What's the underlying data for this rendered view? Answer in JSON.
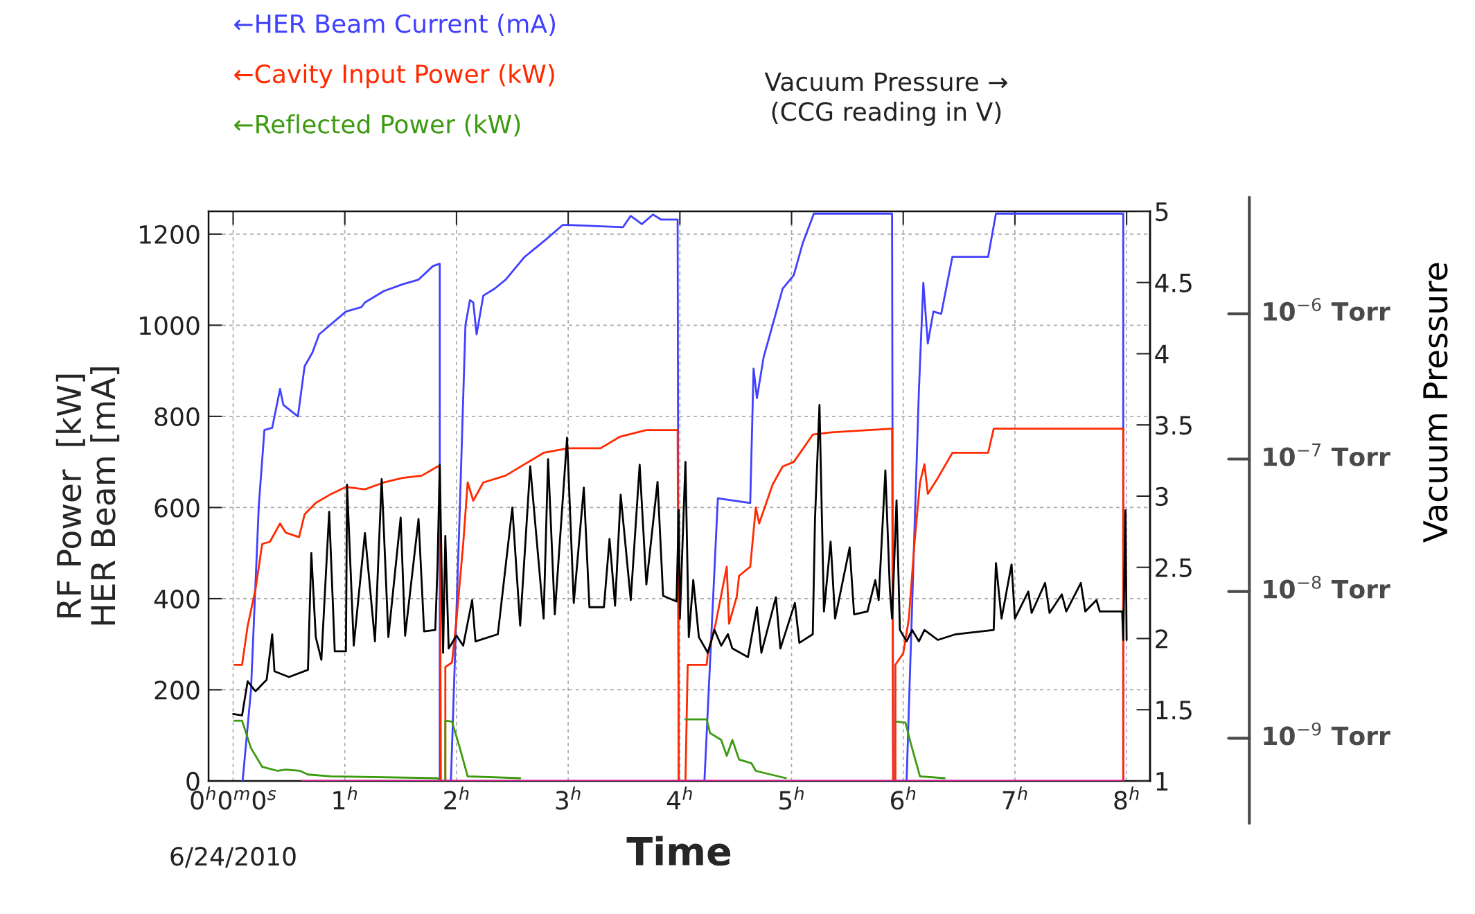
{
  "chart_data": {
    "type": "line",
    "xlabel": "Time",
    "ylabel": "RF Power  [kW]\nHER Beam [mA]",
    "y2label": "Vacuum Pressure →\n(CCG reading in V)",
    "annotations": [
      "6/24/2010",
      "Vacuum Pressure"
    ],
    "xlim": [
      -0.22,
      8.21
    ],
    "xticks": [
      {
        "value": 0,
        "label": "0$^{h}$0$^{m}$0$^{s}$"
      },
      {
        "value": 1,
        "label": "1$^{h}$"
      },
      {
        "value": 2,
        "label": "2$^{h}$"
      },
      {
        "value": 3,
        "label": "3$^{h}$"
      },
      {
        "value": 4,
        "label": "4$^{h}$"
      },
      {
        "value": 5,
        "label": "5$^{h}$"
      },
      {
        "value": 6,
        "label": "6$^{h}$"
      },
      {
        "value": 7,
        "label": "7$^{h}$"
      },
      {
        "value": 8,
        "label": "8$^{h}$"
      }
    ],
    "ylim": [
      0,
      1250
    ],
    "yticks": [
      0,
      200,
      400,
      600,
      800,
      1000,
      1200
    ],
    "y2lim": [
      1,
      5
    ],
    "y2ticks": [
      1,
      1.5,
      2,
      2.5,
      3,
      3.5,
      4,
      4.5,
      5
    ],
    "ref_lines": [
      {
        "axis": "y2",
        "value": 4.28,
        "label": "10$^{−6}$ Torr",
        "color": "#4a4a4a"
      },
      {
        "axis": "y2",
        "value": 3.26,
        "label": "10$^{−7}$ Torr",
        "color": "#4a4a4a"
      },
      {
        "axis": "y2",
        "value": 2.33,
        "label": "10$^{−8}$ Torr",
        "color": "#4a4a4a"
      },
      {
        "axis": "y2",
        "value": 1.3,
        "label": "10$^{−9}$ Torr",
        "color": "#4a4a4a"
      }
    ],
    "grid": true,
    "line_style": "solid",
    "series": [
      {
        "name": "←HER Beam Current (mA)",
        "color": "#4040ff",
        "x": [
          0.085,
          0.16,
          0.23,
          0.28,
          0.35,
          0.42,
          0.45,
          0.58,
          0.64,
          0.71,
          0.77,
          1.01,
          1.15,
          1.18,
          1.35,
          1.52,
          1.66,
          1.79,
          1.85,
          1.85,
          1.95,
          2.03,
          2.08,
          2.12,
          2.15,
          2.18,
          2.24,
          2.34,
          2.44,
          2.61,
          2.81,
          2.95,
          3.0,
          3.49,
          3.56,
          3.66,
          3.76,
          3.83,
          3.98,
          3.99,
          4.22,
          4.34,
          4.63,
          4.66,
          4.69,
          4.75,
          4.83,
          4.92,
          5.02,
          5.1,
          5.2,
          5.9,
          5.91,
          6.03,
          6.14,
          6.18,
          6.22,
          6.27,
          6.34,
          6.44,
          6.76,
          6.83,
          7.97,
          7.97
        ],
        "values": [
          0,
          200,
          605,
          770,
          775,
          860,
          825,
          800,
          910,
          940,
          980,
          1030,
          1040,
          1050,
          1075,
          1090,
          1100,
          1130,
          1135,
          0,
          0,
          600,
          1000,
          1055,
          1050,
          980,
          1065,
          1080,
          1100,
          1150,
          1190,
          1220,
          1220,
          1215,
          1240,
          1222,
          1243,
          1232,
          1232,
          0,
          0,
          620,
          610,
          905,
          840,
          930,
          1000,
          1080,
          1110,
          1180,
          1245,
          1245,
          0,
          0,
          855,
          1093,
          960,
          1030,
          1025,
          1150,
          1150,
          1245,
          1245,
          0
        ]
      },
      {
        "name": "←Cavity Input Power (kW)",
        "color": "#ff2a00",
        "x": [
          0.01,
          0.08,
          0.13,
          0.2,
          0.26,
          0.33,
          0.42,
          0.47,
          0.59,
          0.64,
          0.74,
          0.88,
          1.01,
          1.18,
          1.35,
          1.52,
          1.69,
          1.83,
          1.85,
          1.86,
          1.9,
          1.9,
          1.96,
          2.0,
          2.06,
          2.1,
          2.15,
          2.24,
          2.44,
          2.61,
          2.78,
          3.0,
          3.29,
          3.46,
          3.7,
          3.98,
          3.99,
          4.05,
          4.07,
          4.24,
          4.25,
          4.32,
          4.42,
          4.44,
          4.51,
          4.53,
          4.63,
          4.68,
          4.71,
          4.83,
          4.92,
          5.02,
          5.19,
          5.36,
          5.69,
          5.9,
          5.91,
          5.93,
          5.93,
          6.0,
          6.05,
          6.1,
          6.15,
          6.19,
          6.22,
          6.31,
          6.44,
          6.76,
          6.81,
          7.97,
          7.97
        ],
        "values": [
          255,
          255,
          340,
          420,
          520,
          525,
          565,
          545,
          535,
          585,
          610,
          630,
          645,
          640,
          655,
          665,
          670,
          690,
          690,
          0,
          0,
          250,
          260,
          355,
          520,
          655,
          615,
          655,
          670,
          695,
          720,
          730,
          730,
          755,
          770,
          770,
          0,
          0,
          255,
          255,
          280,
          345,
          470,
          345,
          405,
          450,
          470,
          600,
          565,
          650,
          690,
          700,
          760,
          765,
          770,
          773,
          0,
          0,
          255,
          280,
          355,
          520,
          655,
          695,
          630,
          665,
          720,
          720,
          773,
          773,
          0
        ]
      },
      {
        "name": "←Reflected Power (kW)",
        "color": "#3c9a10",
        "x": [
          0.01,
          0.08,
          0.16,
          0.26,
          0.4,
          0.47,
          0.6,
          0.67,
          0.88,
          1.83,
          1.86,
          1.9,
          1.9,
          1.96,
          2.03,
          2.1,
          2.57,
          3.3,
          4.05,
          4.24,
          4.27,
          4.37,
          4.42,
          4.47,
          4.53,
          4.64,
          4.68,
          4.95,
          5.5,
          5.94,
          6.02,
          6.07,
          6.15,
          6.37
        ],
        "values": [
          132,
          132,
          72,
          31,
          22,
          25,
          22,
          14,
          10,
          6,
          0,
          0,
          132,
          130,
          72,
          10,
          6,
          null,
          135,
          135,
          105,
          90,
          55,
          90,
          47,
          39,
          22,
          6,
          null,
          130,
          128,
          80,
          10,
          6
        ]
      },
      {
        "color": "#e0179a",
        "x": [
          0.62,
          7.97
        ],
        "values": [
          0,
          0
        ]
      },
      {
        "color": "#000000",
        "axis": "y2",
        "x": [
          0,
          0.08,
          0.13,
          0.2,
          0.3,
          0.35,
          0.37,
          0.5,
          0.67,
          0.7,
          0.74,
          0.79,
          0.86,
          0.91,
          1.01,
          1.02,
          1.08,
          1.18,
          1.27,
          1.33,
          1.39,
          1.5,
          1.54,
          1.66,
          1.71,
          1.81,
          1.83,
          1.85,
          1.88,
          1.9,
          1.93,
          2.0,
          2.06,
          2.14,
          2.17,
          2.37,
          2.5,
          2.57,
          2.66,
          2.78,
          2.82,
          2.88,
          2.99,
          3.05,
          3.14,
          3.19,
          3.32,
          3.37,
          3.42,
          3.47,
          3.56,
          3.64,
          3.7,
          3.8,
          3.85,
          3.97,
          3.99,
          4.0,
          4.05,
          4.08,
          4.12,
          4.17,
          4.25,
          4.31,
          4.37,
          4.43,
          4.47,
          4.61,
          4.69,
          4.73,
          4.86,
          4.9,
          5.03,
          5.07,
          5.19,
          5.21,
          5.25,
          5.29,
          5.35,
          5.39,
          5.52,
          5.56,
          5.68,
          5.75,
          5.78,
          5.84,
          5.88,
          5.9,
          5.94,
          5.97,
          6.03,
          6.08,
          6.14,
          6.19,
          6.31,
          6.47,
          6.81,
          6.83,
          6.88,
          6.97,
          7.0,
          7.12,
          7.15,
          7.27,
          7.31,
          7.42,
          7.46,
          7.59,
          7.63,
          7.73,
          7.76,
          7.96,
          7.97,
          7.99,
          8.0
        ],
        "values": [
          1.47,
          1.46,
          1.7,
          1.63,
          1.71,
          2.03,
          1.77,
          1.73,
          1.78,
          2.6,
          2.01,
          1.85,
          2.89,
          1.91,
          1.91,
          3.08,
          1.95,
          2.74,
          1.98,
          3.12,
          2.01,
          2.85,
          2.02,
          2.84,
          2.05,
          2.06,
          2.51,
          3.22,
          1.9,
          2.72,
          1.93,
          2.02,
          1.95,
          2.27,
          1.98,
          2.03,
          2.92,
          2.09,
          3.21,
          2.14,
          3.26,
          2.17,
          3.41,
          2.25,
          3.06,
          2.22,
          2.22,
          2.7,
          2.23,
          3.01,
          2.27,
          3.22,
          2.38,
          3.1,
          2.3,
          2.26,
          2.9,
          2.14,
          3.24,
          2.01,
          2.41,
          2.01,
          1.9,
          2.06,
          1.95,
          2.03,
          1.93,
          1.87,
          2.22,
          1.9,
          2.29,
          1.93,
          2.25,
          1.97,
          2.03,
          2.84,
          3.64,
          2.19,
          2.68,
          2.14,
          2.64,
          2.17,
          2.19,
          2.41,
          2.27,
          3.18,
          2.35,
          2.14,
          2.97,
          2.06,
          1.98,
          2.06,
          1.98,
          2.06,
          1.99,
          2.03,
          2.06,
          2.53,
          2.14,
          2.52,
          2.14,
          2.33,
          2.18,
          2.39,
          2.18,
          2.31,
          2.19,
          2.39,
          2.19,
          2.27,
          2.19,
          2.19,
          1.99,
          2.9,
          1.99
        ]
      }
    ]
  }
}
